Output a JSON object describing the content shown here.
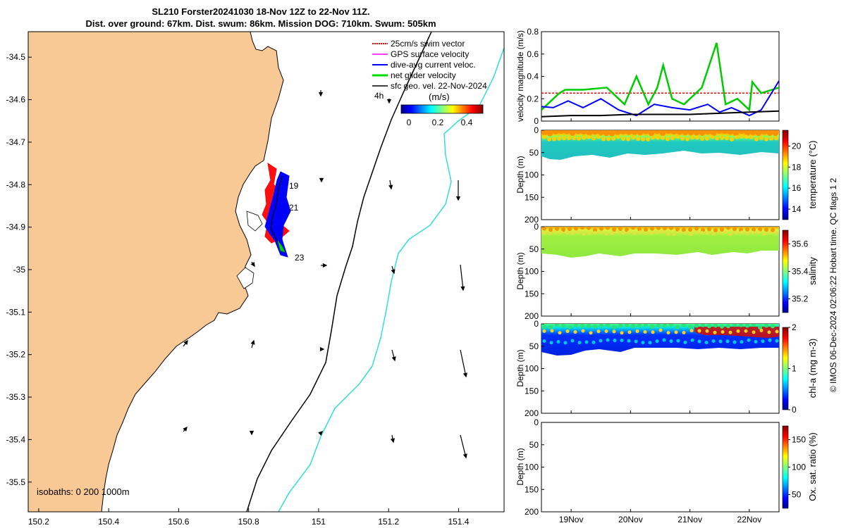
{
  "header": {
    "title_line1": "SL210 Forster20241030 18-Nov 12Z to 22-Nov 11Z.",
    "title_line2": "Dist. over ground: 67km. Dist. swum: 86km. Mission DOG: 710km. Swum: 505km"
  },
  "chart_data": [
    {
      "type": "map",
      "title": "Glider track map",
      "x_ticks": [
        "150.2",
        "150.4",
        "150.6",
        "150.8",
        "151",
        "151.2",
        "151.4"
      ],
      "y_ticks": [
        "-34.5",
        "-34.6",
        "-34.7",
        "-34.8",
        "-34.9",
        "-35",
        "-35.1",
        "-35.2",
        "-35.3",
        "-35.4",
        "-35.5"
      ],
      "xlim": [
        150.17,
        151.53
      ],
      "ylim": [
        -35.57,
        -34.44
      ],
      "legend": [
        {
          "label": "25cm/s swim vector",
          "color": "#ff0000"
        },
        {
          "label": "GPS surface velocity",
          "color": "#ff00ff"
        },
        {
          "label": "dive-avg current veloc.",
          "color": "#0000ff"
        },
        {
          "label": "net glider velocity",
          "color": "#00dd00"
        },
        {
          "label": "sfc geo. vel. 22-Nov-2024",
          "color": "#000000"
        }
      ],
      "vector_scale_label": "4h",
      "colorbar": {
        "label": "(m/s)",
        "ticks": [
          "0",
          "0.2",
          "0.4"
        ],
        "range": [
          0,
          0.5
        ]
      },
      "day_labels": [
        "19",
        "21",
        "23"
      ],
      "isobath_label": "isobaths: 0   200   1000m",
      "track": [
        [
          150.87,
          -34.8
        ],
        [
          150.86,
          -34.84
        ],
        [
          150.85,
          -34.88
        ],
        [
          150.86,
          -34.91
        ],
        [
          150.88,
          -34.94
        ],
        [
          150.9,
          -34.97
        ]
      ]
    },
    {
      "type": "line",
      "ylabel": "velocity magnitude (m/s)",
      "ylim": [
        0,
        0.8
      ],
      "y_ticks": [
        "0",
        "0.2",
        "0.4",
        "0.6",
        "0.8"
      ],
      "x_dates": [
        "19Nov",
        "20Nov",
        "21Nov",
        "22Nov"
      ],
      "xlim_days": [
        18.5,
        22.5
      ],
      "series": [
        {
          "name": "swim speed",
          "color": "#ff0000",
          "x": [
            18.5,
            22.5
          ],
          "values": [
            0.25,
            0.25
          ]
        },
        {
          "name": "net glider velocity",
          "color": "#00cc00",
          "x": [
            18.5,
            18.8,
            18.9,
            19.2,
            19.6,
            19.9,
            20.1,
            20.3,
            20.45,
            20.55,
            20.7,
            20.9,
            21.2,
            21.45,
            21.6,
            21.8,
            22.0,
            22.05,
            22.2,
            22.5
          ],
          "values": [
            0.1,
            0.25,
            0.28,
            0.28,
            0.3,
            0.15,
            0.4,
            0.15,
            0.3,
            0.5,
            0.2,
            0.15,
            0.3,
            0.7,
            0.15,
            0.2,
            0.1,
            0.35,
            0.25,
            0.3
          ]
        },
        {
          "name": "dive-avg current",
          "color": "#0000ff",
          "x": [
            18.5,
            18.7,
            18.95,
            19.2,
            19.5,
            19.8,
            20.1,
            20.4,
            20.7,
            21.0,
            21.3,
            21.5,
            21.7,
            22.0,
            22.2,
            22.5
          ],
          "values": [
            0.13,
            0.12,
            0.18,
            0.12,
            0.2,
            0.1,
            0.05,
            0.15,
            0.12,
            0.1,
            0.15,
            0.08,
            0.12,
            0.05,
            0.1,
            0.36
          ]
        },
        {
          "name": "sfc geo. velocity",
          "color": "#000000",
          "x": [
            18.5,
            19.0,
            19.5,
            20.0,
            20.5,
            21.0,
            21.5,
            22.0,
            22.5
          ],
          "values": [
            0.04,
            0.05,
            0.05,
            0.06,
            0.06,
            0.06,
            0.07,
            0.08,
            0.09
          ]
        }
      ]
    },
    {
      "type": "heatmap",
      "variable": "temperature",
      "ylabel": "Depth (m)",
      "colorbar_label": "temperature (°C)",
      "colorbar_ticks": [
        "14",
        "16",
        "18",
        "20"
      ],
      "colorbar_range": [
        13,
        21.5
      ],
      "y_ticks": [
        "0",
        "50",
        "100",
        "150",
        "200"
      ],
      "ylim": [
        0,
        200
      ]
    },
    {
      "type": "heatmap",
      "variable": "salinity",
      "ylabel": "Depth (m)",
      "colorbar_label": "salinity",
      "colorbar_ticks": [
        "35.2",
        "35.4",
        "35.6"
      ],
      "colorbar_range": [
        35.1,
        35.7
      ],
      "y_ticks": [
        "0",
        "50",
        "100",
        "150",
        "200"
      ],
      "ylim": [
        0,
        200
      ]
    },
    {
      "type": "heatmap",
      "variable": "chl-a",
      "ylabel": "Depth (m)",
      "colorbar_label": "chl-a (mg m-3)",
      "colorbar_ticks": [
        "0",
        "1",
        "2"
      ],
      "colorbar_range": [
        0,
        2
      ],
      "y_ticks": [
        "0",
        "50",
        "100",
        "150",
        "200"
      ],
      "ylim": [
        0,
        200
      ]
    },
    {
      "type": "heatmap",
      "variable": "oxygen saturation",
      "ylabel": "Depth (m)",
      "colorbar_label": "Ox. sat. ratio (%)",
      "colorbar_ticks": [
        "50",
        "100",
        "150"
      ],
      "colorbar_range": [
        25,
        175
      ],
      "y_ticks": [
        "0",
        "50",
        "100",
        "150",
        "200"
      ],
      "ylim": [
        0,
        200
      ],
      "x_ticks": [
        "19Nov",
        "20Nov",
        "21Nov",
        "22Nov"
      ]
    }
  ],
  "footer": {
    "side_note": "© IMOS 06-Dec-2024 02:06:22 Hobart time. QC flags 1  2"
  },
  "colors": {
    "land": "#f8c895",
    "isobath_200": "#000000",
    "isobath_1000": "#33dddd"
  }
}
